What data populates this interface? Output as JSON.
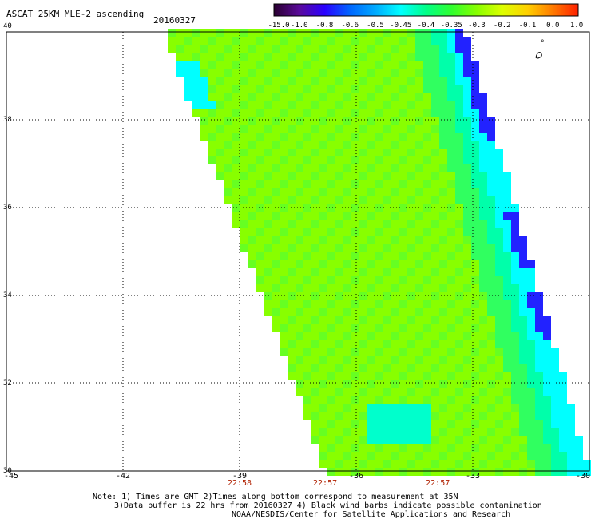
{
  "title": "ASCAT 25KM MLE-2 ascending",
  "date": "20160327",
  "colorbar": {
    "labels": [
      "-15.0",
      "-1.0",
      "-0.8",
      "-0.6",
      "-0.5",
      "-0.45",
      "-0.4",
      "-0.35",
      "-0.3",
      "-0.2",
      "-0.1",
      "0.0",
      "1.0"
    ],
    "colors": [
      "#2a0030",
      "#5a0a9a",
      "#2a00ff",
      "#0066ff",
      "#00aaff",
      "#00ffff",
      "#00ff88",
      "#30ff30",
      "#88ff00",
      "#ddff00",
      "#ffd000",
      "#ff7a00",
      "#ff2000"
    ]
  },
  "axes": {
    "lon_labels": [
      "-45",
      "-42",
      "-39",
      "-36",
      "-33",
      "-30"
    ],
    "lon_values": [
      -45,
      -42,
      -39,
      -36,
      -33,
      -30
    ],
    "lat_labels": [
      "40",
      "38",
      "36",
      "34",
      "32",
      "30"
    ],
    "lat_values": [
      40,
      38,
      36,
      34,
      32,
      30
    ]
  },
  "times": {
    "values": [
      "22:58",
      "22:57",
      "22:57"
    ],
    "lon": [
      -39,
      -36.8,
      -33.9
    ]
  },
  "notes": [
    "Note: 1) Times are GMT 2)Times along bottom correspond to measurement at 35N",
    "3)Data buffer is 22 hrs from 20160327 4) Black wind barbs indicate possible contamination",
    "NOAA/NESDIS/Center for Satellite Applications and Research"
  ],
  "grid": "dotted"
}
